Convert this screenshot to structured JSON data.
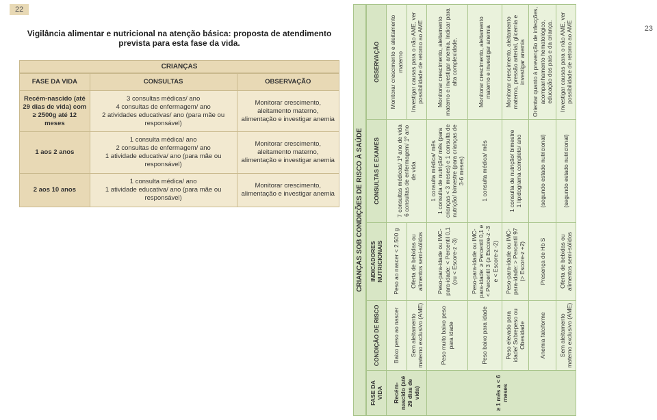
{
  "page_left": "22",
  "page_right": "23",
  "title": "Vigilância alimentar e nutricional na atenção básica: proposta de atendimento prevista para esta fase da vida.",
  "table1": {
    "section_label": "CRIANÇAS",
    "headers": [
      "FASE DA VIDA",
      "CONSULTAS",
      "OBSERVAÇÃO"
    ],
    "rows": [
      {
        "phase": "Recém-nascido (até 29 dias de vida) com ≥ 2500g até 12 meses",
        "consultas": "3 consultas médicas/ ano\n4 consultas de enfermagem/ ano\n2 atividades educativas/ ano (para mãe ou responsável)",
        "obs": "Monitorar crescimento, aleitamento materno, alimentação e investigar anemia"
      },
      {
        "phase": "1 aos 2 anos",
        "consultas": "1 consulta médica/ ano\n2 consultas de enfermagem/ ano\n1 atividade educativa/ ano (para mãe ou responsável)",
        "obs": "Monitorar crescimento, aleitamento materno, alimentação e investigar anemia"
      },
      {
        "phase": "2 aos 10 anos",
        "consultas": "1 consulta médica/ ano\n1 atividade educativa/ ano (para mãe ou responsável)",
        "obs": "Monitorar crescimento, alimentação e investigar anemia"
      }
    ]
  },
  "table2": {
    "section_label": "CRIANÇAS SOB CONDIÇÕES DE RISCO À SAÚDE",
    "headers": [
      "FASE DA VIDA",
      "CONDIÇÃO DE RISCO",
      "INDICADORES NUTRICIONAIS",
      "CONSULTAS E EXAMES",
      "OBSERVAÇÃO"
    ],
    "rows": [
      {
        "phase": "Recém-nascido (até 29 dias de vida)",
        "rowspan_phase": 2,
        "cond": "Baixo peso ao nascer",
        "ind": "Peso ao nascer < 2.500 g",
        "cons": "7 consultas médicas/ 1º ano de vida\n6 consultas de enfermagem/ 1º ano de vida",
        "rowspan_cons": 2,
        "obs": "Monitorar crescimento e aleitamento materno"
      },
      {
        "cond": "Sem aleitamento materno exclusivo (AME)",
        "ind": "Oferta de bebidas ou alimentos semi-sólidos",
        "obs": "Investigar causas para o não AME, ver possibilidade de retorno ao AME"
      },
      {
        "phase": "≥ 1 mês a < 6 meses",
        "rowspan_phase": 5,
        "cond": "Peso muito baixo peso para idade",
        "ind": "Peso-para-idade ou IMC-para-idade: < Percentil 0,1 (ou < Escore-z -3)",
        "cons": "1 consulta médica/ mês\n1 consulta de nutrição/ mês (para crianças < 3 meses) e 1 consulta de nutrição/ bimestre (para crianças de 3-6 meses)",
        "obs": "Monitorar crescimento, aleitamento materno e investigar anemia. Indicar para alta complexidade."
      },
      {
        "cond": "Peso baixo para idade",
        "ind": "Peso-para-idade ou IMC-para-idade: ≥ Percentil 0,1 e < Percentil 3 (≥ Escore-z -3 e < Escore-z -2)",
        "cons": "1 consulta médica/ mês",
        "obs": "Monitorar crescimento, aleitamento materno e investigar anemia"
      },
      {
        "cond": "Peso elevado para idade/ Sobrepeso ou Obesidade",
        "ind": "Peso-para-idade ou IMC-para-idade: > Percentil 97 (> Escore-z +2)",
        "cons": "1 consulta de nutrição/ bimestre\n1 lipidograma completo/ ano",
        "obs": "Monitorar crescimento, aleitamento materno, pressão arterial, glicemia e investigar anemia"
      },
      {
        "cond": "Anemia falciforme",
        "ind": "Presença de Hb S",
        "cons": "(segundo estado nutricional)",
        "obs": "Orientar quanto à prevenção de infecções, acompanhamento hematológico, educação dos pais e da criança."
      },
      {
        "cond": "Sem aleitamento materno exclusivo (AME)",
        "ind": "Oferta de bebidas ou alimentos semi-sólidos",
        "cons": "(segundo estado nutricional)",
        "obs": "Investigar causas para o não AME, ver possibilidade de retorno ao AME"
      }
    ]
  },
  "colors": {
    "t1_header": "#e8d9b5",
    "t1_cell": "#f2e9d0",
    "t1_border": "#c9b98d",
    "t2_header": "#d8e6c5",
    "t2_cell": "#eaf2dc",
    "t2_border": "#a8c48b"
  }
}
